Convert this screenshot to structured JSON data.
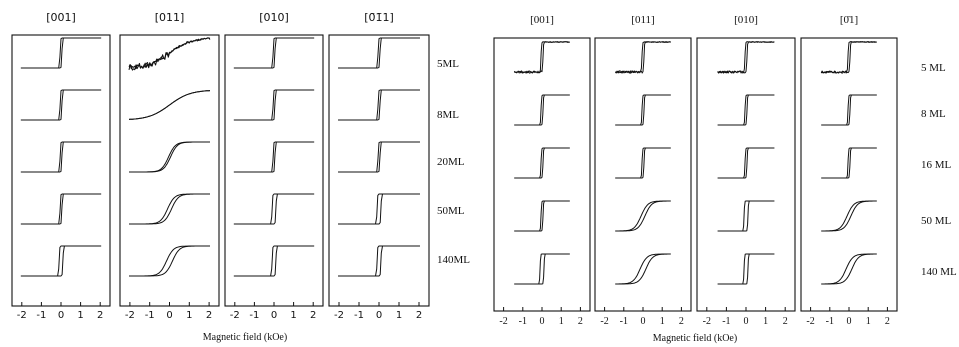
{
  "chart_data": [
    {
      "type": "line",
      "title": "",
      "xlabel": "Magnetic field (kOe)",
      "ylabel": "",
      "xlim": [
        -2.5,
        2.5
      ],
      "x_ticks": [
        "-2",
        "-1",
        "0",
        "1",
        "2"
      ],
      "grid": false,
      "columns": [
        "[001]",
        "[011]",
        "[010]",
        "[0̄1̄1]"
      ],
      "rows": [
        "5ML",
        "8ML",
        "20ML",
        "50ML",
        "140ML"
      ],
      "loops": [
        [
          {
            "shape": "square",
            "coercive": 0.05,
            "noise": 0.0
          },
          {
            "shape": "square",
            "coercive": 0.05,
            "noise": 0.0
          },
          {
            "shape": "square",
            "coercive": 0.05,
            "noise": 0.0
          },
          {
            "shape": "square",
            "coercive": 0.05,
            "noise": 0.0
          },
          {
            "shape": "square",
            "coercive": 0.1,
            "noise": 0.0
          }
        ],
        [
          {
            "shape": "linear",
            "coercive": 0.0,
            "noise": 0.45
          },
          {
            "shape": "linear",
            "coercive": 0.0,
            "noise": 0.0
          },
          {
            "shape": "soft",
            "coercive": 0.05,
            "noise": 0.0
          },
          {
            "shape": "soft",
            "coercive": 0.1,
            "noise": 0.0
          },
          {
            "shape": "soft",
            "coercive": 0.15,
            "noise": 0.0
          }
        ],
        [
          {
            "shape": "square",
            "coercive": 0.05,
            "noise": 0.0
          },
          {
            "shape": "square",
            "coercive": 0.05,
            "noise": 0.0
          },
          {
            "shape": "square",
            "coercive": 0.05,
            "noise": 0.0
          },
          {
            "shape": "square",
            "coercive": 0.1,
            "noise": 0.0
          },
          {
            "shape": "square",
            "coercive": 0.1,
            "noise": 0.0
          }
        ],
        [
          {
            "shape": "square",
            "coercive": 0.05,
            "noise": 0.0
          },
          {
            "shape": "square",
            "coercive": 0.05,
            "noise": 0.0
          },
          {
            "shape": "square",
            "coercive": 0.05,
            "noise": 0.0
          },
          {
            "shape": "square",
            "coercive": 0.1,
            "noise": 0.0
          },
          {
            "shape": "square",
            "coercive": 0.1,
            "noise": 0.0
          }
        ]
      ]
    },
    {
      "type": "line",
      "title": "",
      "xlabel": "Magnetic field (kOe)",
      "ylabel": "",
      "xlim": [
        -2.5,
        2.5
      ],
      "x_ticks": [
        "-2",
        "-1",
        "0",
        "1",
        "2"
      ],
      "grid": false,
      "columns": [
        "[001]",
        "[011]",
        "[010]",
        "[0̄1]"
      ],
      "rows": [
        "5 ML",
        "8 ML",
        "16 ML",
        "50 ML",
        "140 ML"
      ],
      "loops": [
        [
          {
            "shape": "square",
            "coercive": 0.05,
            "noise": 0.15
          },
          {
            "shape": "square",
            "coercive": 0.05,
            "noise": 0.0
          },
          {
            "shape": "square",
            "coercive": 0.05,
            "noise": 0.0
          },
          {
            "shape": "square",
            "coercive": 0.05,
            "noise": 0.0
          },
          {
            "shape": "square",
            "coercive": 0.1,
            "noise": 0.0
          }
        ],
        [
          {
            "shape": "square",
            "coercive": 0.05,
            "noise": 0.15
          },
          {
            "shape": "square",
            "coercive": 0.05,
            "noise": 0.0
          },
          {
            "shape": "square",
            "coercive": 0.05,
            "noise": 0.0
          },
          {
            "shape": "soft",
            "coercive": 0.1,
            "noise": 0.0
          },
          {
            "shape": "soft",
            "coercive": 0.15,
            "noise": 0.0
          }
        ],
        [
          {
            "shape": "square",
            "coercive": 0.05,
            "noise": 0.15
          },
          {
            "shape": "square",
            "coercive": 0.05,
            "noise": 0.0
          },
          {
            "shape": "square",
            "coercive": 0.05,
            "noise": 0.0
          },
          {
            "shape": "square",
            "coercive": 0.1,
            "noise": 0.0
          },
          {
            "shape": "square",
            "coercive": 0.1,
            "noise": 0.0
          }
        ],
        [
          {
            "shape": "square",
            "coercive": 0.05,
            "noise": 0.15
          },
          {
            "shape": "square",
            "coercive": 0.05,
            "noise": 0.0
          },
          {
            "shape": "square",
            "coercive": 0.05,
            "noise": 0.0
          },
          {
            "shape": "soft",
            "coercive": 0.1,
            "noise": 0.0
          },
          {
            "shape": "soft",
            "coercive": 0.15,
            "noise": 0.0
          }
        ]
      ]
    }
  ]
}
